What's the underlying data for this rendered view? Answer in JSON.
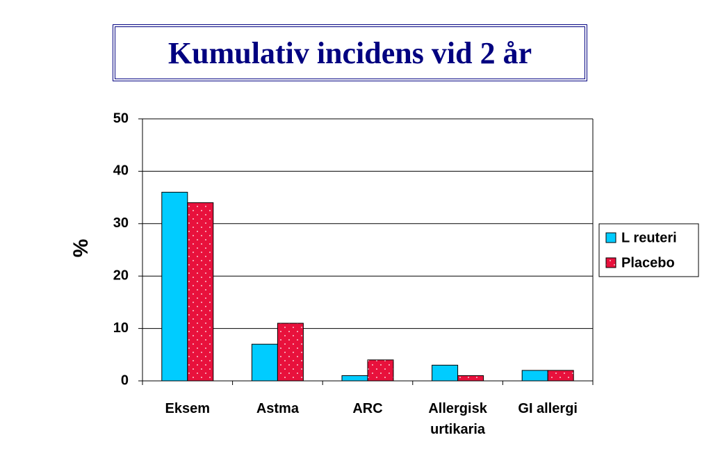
{
  "chart_data": {
    "type": "bar",
    "title": "Kumulativ incidens vid 2 år",
    "y_label": "%",
    "categories": [
      "Eksem",
      "Astma",
      "ARC",
      "Allergisk urtikaria",
      "GI allergi"
    ],
    "series": [
      {
        "name": "L reuteri",
        "color": "#00ccff",
        "values": [
          36,
          7,
          1,
          3,
          2
        ]
      },
      {
        "name": "Placebo",
        "color": "#e8113c",
        "values": [
          34,
          11,
          4,
          1,
          2
        ]
      }
    ],
    "ylim": [
      0,
      50
    ],
    "yticks": [
      0,
      10,
      20,
      30,
      40,
      50
    ],
    "grid": true,
    "legend": "right"
  }
}
